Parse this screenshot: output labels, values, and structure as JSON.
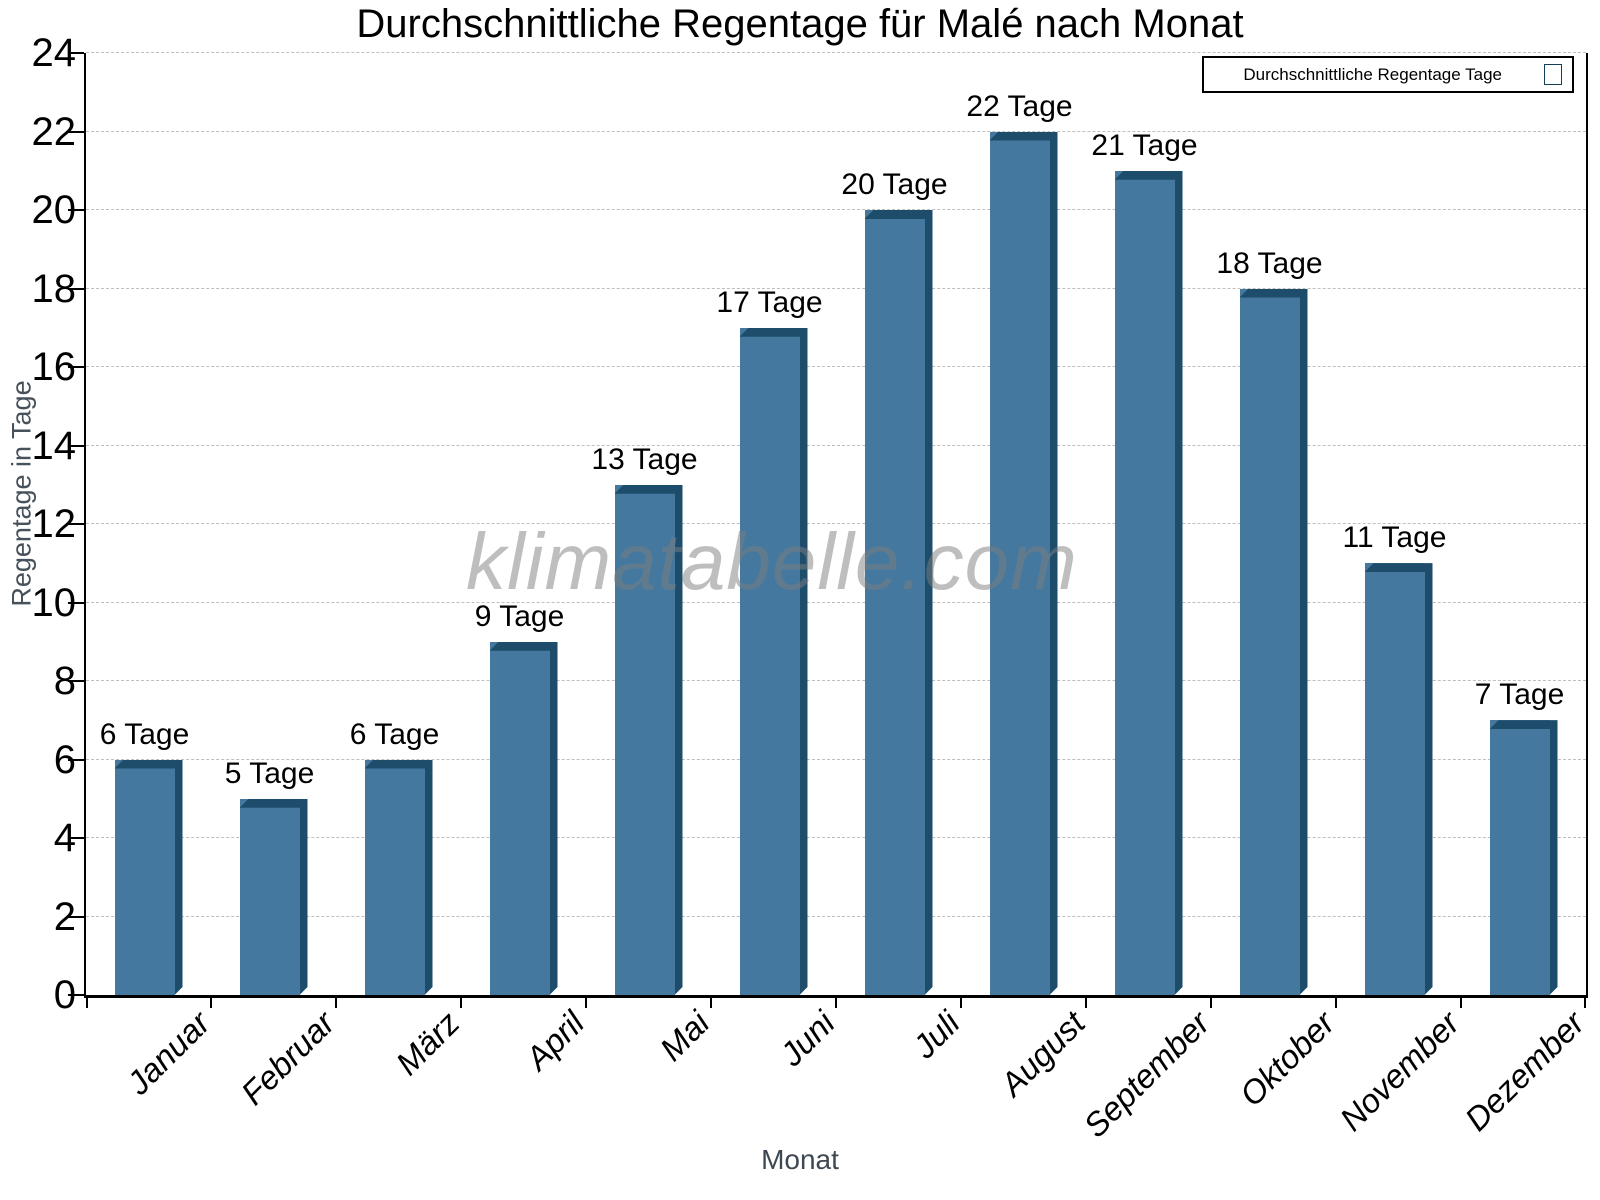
{
  "title": "Durchschnittliche Regentage für Malé nach Monat",
  "legend": {
    "label": "Durchschnittliche Regentage Tage",
    "position": "top-right"
  },
  "watermark": "klimatabelle.com",
  "chart_data": {
    "type": "bar",
    "title": "Durchschnittliche Regentage für Malé nach Monat",
    "xlabel": "Monat",
    "ylabel": "Regentage in Tage",
    "categories": [
      "Januar",
      "Februar",
      "März",
      "April",
      "Mai",
      "Juni",
      "Juli",
      "August",
      "September",
      "Oktober",
      "November",
      "Dezember"
    ],
    "values": [
      6,
      5,
      6,
      9,
      13,
      17,
      20,
      22,
      21,
      18,
      11,
      7
    ],
    "data_labels": [
      "6 Tage",
      "5 Tage",
      "6 Tage",
      "9 Tage",
      "13 Tage",
      "17 Tage",
      "20 Tage",
      "22 Tage",
      "21 Tage",
      "18 Tage",
      "11 Tage",
      "7 Tage"
    ],
    "series_name": "Durchschnittliche Regentage Tage",
    "ylim": [
      0,
      24
    ],
    "ytick_step": 2,
    "ytick_labels": [
      "0",
      "2",
      "4",
      "6",
      "8",
      "10",
      "12",
      "14",
      "16",
      "18",
      "20",
      "22",
      "24"
    ],
    "grid": "horizontal-dashed",
    "legend_position": "top-right",
    "bar_color": "#45789e",
    "bar_shade_color": "#1d4d6b",
    "grid_color": "#bfbfbf",
    "axis_color": "#000000",
    "text_color": "#000000",
    "axis_title_color": "#47515b",
    "watermark_color": "#7d7d7d"
  }
}
